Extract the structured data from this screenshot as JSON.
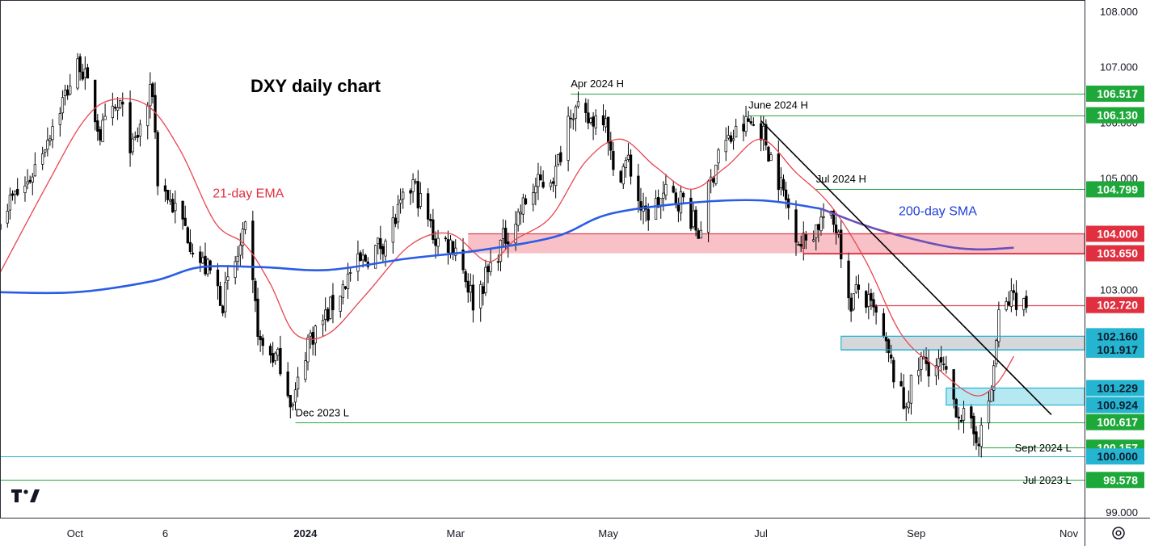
{
  "chart_data": {
    "type": "candlestick",
    "title": "DXY daily chart",
    "ylim": [
      98.9,
      108.2
    ],
    "y_ticks": [
      "99.000",
      "100.000",
      "101.000",
      "102.000",
      "103.000",
      "104.000",
      "105.000",
      "106.000",
      "107.000",
      "108.000"
    ],
    "x_tick_labels": [
      {
        "label": "Oct",
        "date": "2023-10-01",
        "bold": false
      },
      {
        "label": "6",
        "date": "2023-11-06",
        "bold": false
      },
      {
        "label": "2024",
        "date": "2024-01-01",
        "bold": true
      },
      {
        "label": "Mar",
        "date": "2024-03-01",
        "bold": false
      },
      {
        "label": "May",
        "date": "2024-05-01",
        "bold": false
      },
      {
        "label": "Jul",
        "date": "2024-07-01",
        "bold": false
      },
      {
        "label": "Sep",
        "date": "2024-09-01",
        "bold": false
      },
      {
        "label": "Nov",
        "date": "2024-11-01",
        "bold": false
      }
    ],
    "x_range": [
      "2023-09-01",
      "2024-11-05"
    ],
    "grid": false,
    "candle_colors": {
      "up": "#ffffff",
      "down": "#000000",
      "edge": "#000000"
    },
    "ohlc_anchors": [
      {
        "date": "2023-09-01",
        "close": 104.4
      },
      {
        "date": "2023-09-12",
        "close": 104.9
      },
      {
        "date": "2023-09-28",
        "close": 106.6
      },
      {
        "date": "2023-10-03",
        "close": 107.1
      },
      {
        "date": "2023-10-11",
        "close": 105.8
      },
      {
        "date": "2023-10-19",
        "close": 106.3
      },
      {
        "date": "2023-10-24",
        "close": 105.5
      },
      {
        "date": "2023-11-01",
        "close": 106.6
      },
      {
        "date": "2023-11-03",
        "close": 105.0
      },
      {
        "date": "2023-11-14",
        "close": 104.1
      },
      {
        "date": "2023-11-20",
        "close": 103.5
      },
      {
        "date": "2023-11-24",
        "close": 103.3
      },
      {
        "date": "2023-11-29",
        "close": 102.8
      },
      {
        "date": "2023-12-05",
        "close": 103.6
      },
      {
        "date": "2023-12-08",
        "close": 104.0
      },
      {
        "date": "2023-12-14",
        "close": 102.0
      },
      {
        "date": "2023-12-22",
        "close": 101.7
      },
      {
        "date": "2023-12-27",
        "close": 100.9
      },
      {
        "date": "2024-01-02",
        "close": 102.1
      },
      {
        "date": "2024-01-09",
        "close": 102.5
      },
      {
        "date": "2024-01-19",
        "close": 103.3
      },
      {
        "date": "2024-02-02",
        "close": 103.9
      },
      {
        "date": "2024-02-13",
        "close": 104.9
      },
      {
        "date": "2024-02-22",
        "close": 103.9
      },
      {
        "date": "2024-03-01",
        "close": 103.8
      },
      {
        "date": "2024-03-08",
        "close": 102.8
      },
      {
        "date": "2024-03-14",
        "close": 103.3
      },
      {
        "date": "2024-03-19",
        "close": 103.8
      },
      {
        "date": "2024-04-01",
        "close": 104.8
      },
      {
        "date": "2024-04-10",
        "close": 105.1
      },
      {
        "date": "2024-04-16",
        "close": 106.3
      },
      {
        "date": "2024-04-22",
        "close": 106.0
      },
      {
        "date": "2024-04-30",
        "close": 106.2
      },
      {
        "date": "2024-05-03",
        "close": 105.0
      },
      {
        "date": "2024-05-09",
        "close": 105.3
      },
      {
        "date": "2024-05-15",
        "close": 104.3
      },
      {
        "date": "2024-05-24",
        "close": 104.7
      },
      {
        "date": "2024-05-31",
        "close": 104.6
      },
      {
        "date": "2024-06-06",
        "close": 104.0
      },
      {
        "date": "2024-06-14",
        "close": 105.5
      },
      {
        "date": "2024-06-26",
        "close": 106.0
      },
      {
        "date": "2024-07-01",
        "close": 105.9
      },
      {
        "date": "2024-07-08",
        "close": 105.0
      },
      {
        "date": "2024-07-17",
        "close": 103.8
      },
      {
        "date": "2024-07-26",
        "close": 104.3
      },
      {
        "date": "2024-08-01",
        "close": 104.1
      },
      {
        "date": "2024-08-05",
        "close": 102.7
      },
      {
        "date": "2024-08-09",
        "close": 103.0
      },
      {
        "date": "2024-08-16",
        "close": 102.5
      },
      {
        "date": "2024-08-27",
        "close": 100.9
      },
      {
        "date": "2024-09-03",
        "close": 101.7
      },
      {
        "date": "2024-09-11",
        "close": 101.6
      },
      {
        "date": "2024-09-17",
        "close": 100.9
      },
      {
        "date": "2024-09-24",
        "close": 100.4
      },
      {
        "date": "2024-09-27",
        "close": 100.4
      },
      {
        "date": "2024-10-01",
        "close": 101.2
      },
      {
        "date": "2024-10-04",
        "close": 102.5
      },
      {
        "date": "2024-10-10",
        "close": 102.9
      },
      {
        "date": "2024-10-15",
        "close": 102.7
      }
    ],
    "ema21": [
      {
        "date": "2023-09-01",
        "value": 103.3
      },
      {
        "date": "2023-09-20",
        "value": 104.9
      },
      {
        "date": "2023-10-04",
        "value": 106.0
      },
      {
        "date": "2023-10-15",
        "value": 106.4
      },
      {
        "date": "2023-10-30",
        "value": 106.3
      },
      {
        "date": "2023-11-12",
        "value": 105.5
      },
      {
        "date": "2023-11-26",
        "value": 104.2
      },
      {
        "date": "2023-12-08",
        "value": 103.8
      },
      {
        "date": "2023-12-18",
        "value": 103.1
      },
      {
        "date": "2023-12-28",
        "value": 102.2
      },
      {
        "date": "2024-01-10",
        "value": 102.2
      },
      {
        "date": "2024-01-25",
        "value": 102.9
      },
      {
        "date": "2024-02-12",
        "value": 103.8
      },
      {
        "date": "2024-02-28",
        "value": 104.0
      },
      {
        "date": "2024-03-14",
        "value": 103.5
      },
      {
        "date": "2024-03-25",
        "value": 103.9
      },
      {
        "date": "2024-04-08",
        "value": 104.3
      },
      {
        "date": "2024-04-22",
        "value": 105.3
      },
      {
        "date": "2024-05-06",
        "value": 105.7
      },
      {
        "date": "2024-05-20",
        "value": 105.2
      },
      {
        "date": "2024-06-03",
        "value": 104.8
      },
      {
        "date": "2024-06-17",
        "value": 105.2
      },
      {
        "date": "2024-07-01",
        "value": 105.7
      },
      {
        "date": "2024-07-15",
        "value": 105.1
      },
      {
        "date": "2024-07-29",
        "value": 104.5
      },
      {
        "date": "2024-08-12",
        "value": 103.5
      },
      {
        "date": "2024-08-26",
        "value": 102.2
      },
      {
        "date": "2024-09-09",
        "value": 101.6
      },
      {
        "date": "2024-09-24",
        "value": 101.1
      },
      {
        "date": "2024-10-03",
        "value": 101.3
      },
      {
        "date": "2024-10-10",
        "value": 101.8
      }
    ],
    "sma200": [
      {
        "date": "2023-09-01",
        "value": 102.95
      },
      {
        "date": "2023-10-01",
        "value": 102.95
      },
      {
        "date": "2023-11-01",
        "value": 103.15
      },
      {
        "date": "2023-11-20",
        "value": 103.4
      },
      {
        "date": "2023-12-15",
        "value": 103.4
      },
      {
        "date": "2024-01-10",
        "value": 103.35
      },
      {
        "date": "2024-02-10",
        "value": 103.55
      },
      {
        "date": "2024-03-10",
        "value": 103.7
      },
      {
        "date": "2024-04-10",
        "value": 103.95
      },
      {
        "date": "2024-05-01",
        "value": 104.35
      },
      {
        "date": "2024-06-01",
        "value": 104.55
      },
      {
        "date": "2024-07-01",
        "value": 104.6
      },
      {
        "date": "2024-07-25",
        "value": 104.45
      },
      {
        "date": "2024-08-15",
        "value": 104.1
      },
      {
        "date": "2024-09-10",
        "value": 103.8
      },
      {
        "date": "2024-09-25",
        "value": 103.72
      },
      {
        "date": "2024-10-10",
        "value": 103.75
      }
    ],
    "zones": [
      {
        "name": "103.65-104.00",
        "from": 103.65,
        "to": 104.0,
        "start": "2024-03-06",
        "fill": "#f7b6bd",
        "stroke": "#e0404f",
        "stroke_start": "2024-07-18"
      },
      {
        "name": "101.917-102.16",
        "from": 101.917,
        "to": 102.16,
        "start": "2024-08-02",
        "fill": "#cfd0d3",
        "stroke": "#26b5d1",
        "stroke_start": "2024-08-02"
      },
      {
        "name": "100.924-101.229",
        "from": 100.924,
        "to": 101.229,
        "start": "2024-09-13",
        "fill": "#a9e4f0",
        "stroke": "#26b5d1",
        "stroke_start": "2024-09-13"
      }
    ],
    "levels": [
      {
        "value": 106.517,
        "label": "106.517",
        "start": "2024-04-16",
        "line_color": "#1fa83a",
        "badge_color": "#1fa83a"
      },
      {
        "value": 106.13,
        "label": "106.130",
        "start": "2024-06-26",
        "line_color": "#1fa83a",
        "badge_color": "#1fa83a"
      },
      {
        "value": 104.799,
        "label": "104.799",
        "start": "2024-07-23",
        "line_color": "#1fa83a",
        "badge_color": "#1fa83a"
      },
      {
        "value": 104.0,
        "label": "104.000",
        "start": "2024-03-06",
        "line_color": "#e0404f",
        "badge_color": "#e0303f"
      },
      {
        "value": 103.65,
        "label": "103.650",
        "start": "2024-07-18",
        "line_color": "#e0404f",
        "badge_color": "#e0303f"
      },
      {
        "value": 102.72,
        "label": "102.720",
        "start": "2024-08-12",
        "line_color": "#e0404f",
        "badge_color": "#e0303f"
      },
      {
        "value": 102.16,
        "label": "102.160",
        "start": "2024-08-02",
        "line_color": "#26b5d1",
        "badge_color": "#26b5d1"
      },
      {
        "value": 101.917,
        "label": "101.917",
        "start": "2024-08-02",
        "line_color": "#26b5d1",
        "badge_color": "#26b5d1"
      },
      {
        "value": 101.229,
        "label": "101.229",
        "start": "2024-09-13",
        "line_color": "#26b5d1",
        "badge_color": "#26b5d1"
      },
      {
        "value": 100.924,
        "label": "100.924",
        "start": "2024-09-13",
        "line_color": "#26b5d1",
        "badge_color": "#26b5d1"
      },
      {
        "value": 100.617,
        "label": "100.617",
        "start": "2023-12-28",
        "line_color": "#1fa83a",
        "badge_color": "#1fa83a"
      },
      {
        "value": 100.157,
        "label": "100.157",
        "start": "2024-09-27",
        "line_color": "#1fa83a",
        "badge_color": "#1fa83a"
      },
      {
        "value": 100.0,
        "label": "100.000",
        "start": "2023-09-01",
        "line_color": "#26b5d1",
        "badge_color": "#26b5d1"
      },
      {
        "value": 99.578,
        "label": "99.578",
        "start": "2023-09-01",
        "line_color": "#1fa83a",
        "badge_color": "#1fa83a"
      }
    ],
    "trendline": {
      "from": {
        "date": "2024-07-01",
        "value": 106.03
      },
      "to": {
        "date": "2024-10-25",
        "value": 100.75
      },
      "color": "#000000"
    },
    "annotations": [
      {
        "text": "Apr 2024 H",
        "date": "2024-04-16",
        "value": 106.63,
        "color": "#000000",
        "align": "start"
      },
      {
        "text": "June 2024 H",
        "date": "2024-06-26",
        "value": 106.25,
        "color": "#000000",
        "align": "start"
      },
      {
        "text": "Jul 2024 H",
        "date": "2024-07-23",
        "value": 104.92,
        "color": "#000000",
        "align": "start"
      },
      {
        "text": "Dec 2023 L",
        "date": "2023-12-28",
        "value": 100.72,
        "color": "#000000",
        "align": "start"
      },
      {
        "text": "Sept 2024 L",
        "date": "2024-11-02",
        "value": 100.09,
        "color": "#000000",
        "align": "end"
      },
      {
        "text": "Jul 2023 L",
        "date": "2024-11-02",
        "value": 99.51,
        "color": "#000000",
        "align": "end"
      },
      {
        "text": "21-day EMA",
        "date": "2023-11-25",
        "value": 104.65,
        "color": "#e0303f",
        "align": "start"
      },
      {
        "text": "200-day SMA",
        "date": "2024-08-25",
        "value": 104.33,
        "color": "#1f3fd6",
        "align": "start"
      }
    ],
    "series_colors": {
      "ema21": "#e8454f",
      "sma200_a": "#2b5ce6",
      "sma200_b": "#6a4fb8"
    }
  },
  "ui": {
    "settings_icon": "gear-icon",
    "logo": "tradingview-logo"
  }
}
